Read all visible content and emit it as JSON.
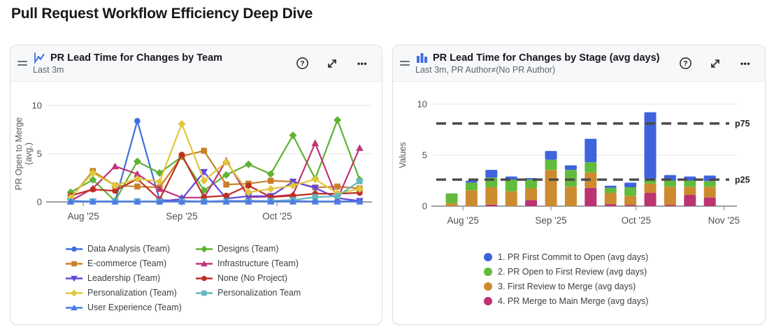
{
  "page_title": "Pull Request Workflow Efficiency Deep Dive",
  "icons": {
    "help_glyph": "?",
    "menu_glyph": "•••"
  },
  "colors": {
    "chart_icon_blue": "#3E6FE0",
    "axis_line": "#9aa0a6",
    "grid_line": "#ededef",
    "tick_text": "#4a4e52",
    "reference_line": "#4a4a4a"
  },
  "cards": [
    {
      "title": "PR Lead Time for Changes by Team",
      "subtitle": "Last 3m"
    },
    {
      "title": "PR Lead Time for Changes by Stage (avg days)",
      "subtitle": "Last 3m, PR Author≠(No PR Author)"
    }
  ],
  "chart_data": [
    {
      "type": "line",
      "title": "PR Lead Time for Changes by Team",
      "xlabel": "",
      "ylabel_lines": [
        "PR Open to Merge",
        "(avg.)"
      ],
      "ylim": [
        0,
        10
      ],
      "yticks": [
        0,
        5,
        10
      ],
      "grid": "horizontal",
      "legend_position": "bottom",
      "x_points": 14,
      "x_tick_labels": [
        "Aug '25",
        "Sep '25",
        "Oct '25"
      ],
      "x_tick_positions": [
        1.57,
        6.0,
        10.29
      ],
      "series": [
        {
          "name": "Data Analysis (Team)",
          "color": "#3E6FE0",
          "marker": "circle",
          "values": [
            0.1,
            0.05,
            0.05,
            8.4,
            0.2,
            0.1,
            0.05,
            0.1,
            0.1,
            0.1,
            0.1,
            0.05,
            0.05,
            0.1
          ]
        },
        {
          "name": "Designs (Team)",
          "color": "#5FB233",
          "marker": "diamond",
          "values": [
            1.0,
            2.3,
            0.1,
            4.2,
            3.0,
            4.7,
            1.2,
            2.8,
            3.9,
            2.9,
            6.9,
            2.4,
            8.5,
            2.3
          ]
        },
        {
          "name": "E-commerce (Team)",
          "color": "#C8802B",
          "marker": "square",
          "values": [
            0.4,
            3.2,
            1.7,
            1.6,
            1.5,
            4.75,
            5.3,
            1.8,
            1.9,
            2.2,
            2.1,
            1.5,
            1.6,
            1.4
          ]
        },
        {
          "name": "Infrastructure (Team)",
          "color": "#C13478",
          "marker": "triangle-up",
          "values": [
            0.1,
            1.4,
            3.7,
            2.9,
            1.35,
            0.45,
            0.45,
            4.3,
            0.5,
            0.55,
            0.75,
            6.1,
            0.3,
            5.6
          ]
        },
        {
          "name": "Leadership (Team)",
          "color": "#6248D8",
          "marker": "triangle-down",
          "values": [
            0.05,
            0.05,
            0.05,
            0.05,
            0.05,
            0.3,
            3.1,
            0.35,
            0.6,
            0.6,
            2.1,
            1.45,
            0.4,
            0.1
          ]
        },
        {
          "name": "None (No Project)",
          "color": "#BE2F21",
          "marker": "circle",
          "values": [
            0.65,
            1.3,
            1.15,
            2.4,
            0.25,
            4.9,
            0.5,
            0.65,
            1.7,
            0.5,
            0.65,
            0.85,
            0.85,
            0.95
          ]
        },
        {
          "name": "Personalization (Team)",
          "color": "#E0C73D",
          "marker": "diamond",
          "values": [
            0.45,
            3.0,
            1.7,
            2.4,
            2.1,
            8.1,
            2.2,
            4.15,
            1.0,
            1.35,
            1.7,
            2.35,
            0.9,
            1.35
          ]
        },
        {
          "name": "Personalization Team",
          "color": "#64B8BE",
          "marker": "square",
          "values": [
            0.05,
            0.05,
            0.05,
            0.05,
            0.05,
            0.05,
            0.05,
            0.05,
            0.05,
            0.1,
            0.2,
            0.5,
            0.6,
            2.15
          ]
        },
        {
          "name": "User Experience (Team)",
          "color": "#4B7BE5",
          "marker": "triangle-up",
          "values": [
            0.05,
            0.05,
            0.05,
            0.05,
            0.05,
            0.05,
            0.05,
            0.05,
            0.05,
            0.05,
            0.05,
            0.05,
            0.05,
            0.05
          ]
        }
      ]
    },
    {
      "type": "stacked-bar",
      "title": "PR Lead Time for Changes by Stage (avg days)",
      "xlabel": "",
      "ylabel": "Values",
      "ylim": [
        0,
        10
      ],
      "yticks": [
        0,
        5,
        10
      ],
      "grid": "horizontal",
      "legend_position": "bottom",
      "x_points": 14,
      "x_tick_labels": [
        "Aug '25",
        "Sep '25",
        "Oct '25",
        "Nov '25"
      ],
      "x_tick_positions": [
        1.57,
        6.0,
        10.29,
        14.71
      ],
      "reference_lines": [
        {
          "label": "p75",
          "value": 8.1
        },
        {
          "label": "p25",
          "value": 2.6
        }
      ],
      "stack_order": "last-series-at-bottom",
      "series": [
        {
          "name": "1. PR First Commit to Open (avg days)",
          "color": "#3E63DC",
          "values": [
            0,
            0.2,
            0.75,
            0.3,
            0.15,
            0.85,
            0.45,
            2.3,
            0.2,
            0.45,
            6.55,
            0.55,
            0.4,
            0.55
          ]
        },
        {
          "name": "2. PR Open to First Review (avg days)",
          "color": "#62BB3D",
          "values": [
            0.95,
            0.75,
            0.95,
            1.15,
            0.85,
            1.0,
            1.65,
            1.0,
            0.5,
            0.85,
            0.45,
            0.6,
            0.6,
            0.55
          ]
        },
        {
          "name": "3. First Review to Merge (avg days)",
          "color": "#CD8B2F",
          "values": [
            0.3,
            1.55,
            1.7,
            1.45,
            1.15,
            3.55,
            1.9,
            1.5,
            1.1,
            0.9,
            0.9,
            1.8,
            0.8,
            1.05
          ]
        },
        {
          "name": "4. PR Merge to Main Merge (avg days)",
          "color": "#BC3372",
          "values": [
            0,
            0,
            0.15,
            0,
            0.6,
            0,
            0,
            1.8,
            0.2,
            0.1,
            1.3,
            0.1,
            1.1,
            0.85
          ]
        }
      ]
    }
  ]
}
